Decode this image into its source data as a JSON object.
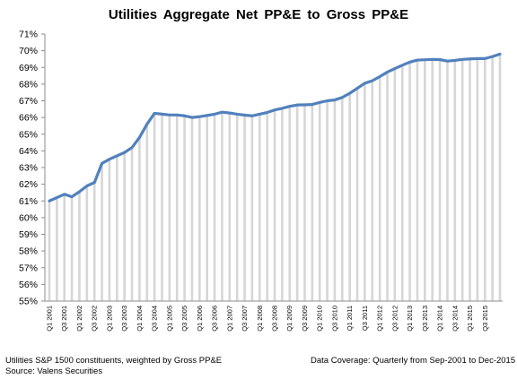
{
  "chart_data": {
    "type": "area",
    "title": "Utilities  Aggregate  Net PP&E to Gross PP&E",
    "xlabel": "",
    "ylabel": "",
    "ylim": [
      0.55,
      0.71
    ],
    "y_ticks": [
      "55%",
      "56%",
      "57%",
      "58%",
      "59%",
      "60%",
      "61%",
      "62%",
      "63%",
      "64%",
      "65%",
      "66%",
      "67%",
      "68%",
      "69%",
      "70%",
      "71%"
    ],
    "y_tick_values": [
      0.55,
      0.56,
      0.57,
      0.58,
      0.59,
      0.6,
      0.61,
      0.62,
      0.63,
      0.64,
      0.65,
      0.66,
      0.67,
      0.68,
      0.69,
      0.7,
      0.71
    ],
    "x_tick_labels": [
      "Q1 2001",
      "Q3 2001",
      "Q1 2002",
      "Q3 2002",
      "Q1 2003",
      "Q3 2003",
      "Q1 2004",
      "Q3 2004",
      "Q1 2005",
      "Q3 2005",
      "Q1 2006",
      "Q3 2006",
      "Q1 2007",
      "Q3 2007",
      "Q1 2008",
      "Q3 2008",
      "Q1 2009",
      "Q3 2009",
      "Q1 2010",
      "Q3 2010",
      "Q1 2011",
      "Q3 2011",
      "Q1 2012",
      "Q3 2012",
      "Q1 2013",
      "Q3 2013",
      "Q1 2014",
      "Q3 2014",
      "Q1 2015",
      "Q3 2015"
    ],
    "grid": false,
    "legend": "none",
    "series": [
      {
        "values": [
          0.61,
          0.612,
          0.614,
          0.6125,
          0.6155,
          0.619,
          0.621,
          0.6325,
          0.635,
          0.637,
          0.639,
          0.642,
          0.648,
          0.656,
          0.6625,
          0.662,
          0.6615,
          0.6615,
          0.661,
          0.66,
          0.6605,
          0.6612,
          0.662,
          0.6632,
          0.6627,
          0.662,
          0.6614,
          0.661,
          0.662,
          0.663,
          0.6645,
          0.6655,
          0.6667,
          0.6675,
          0.6676,
          0.6678,
          0.669,
          0.67,
          0.6705,
          0.672,
          0.6745,
          0.6775,
          0.6805,
          0.682,
          0.6845,
          0.6872,
          0.6893,
          0.6913,
          0.6932,
          0.6944,
          0.6946,
          0.6948,
          0.6947,
          0.6938,
          0.6942,
          0.6948,
          0.6951,
          0.6953,
          0.6953,
          0.6965,
          0.698
        ]
      }
    ],
    "colors": {
      "line": "#5181bd",
      "bars": "#d6d6d6",
      "axis": "#8c8c8c"
    }
  },
  "footnotes": {
    "left_line1": "Utilities S&P 1500 constituents, weighted by Gross PP&E",
    "left_line2": "Source: Valens Securities",
    "right": "Data Coverage: Quarterly from Sep-2001 to Dec-2015"
  }
}
